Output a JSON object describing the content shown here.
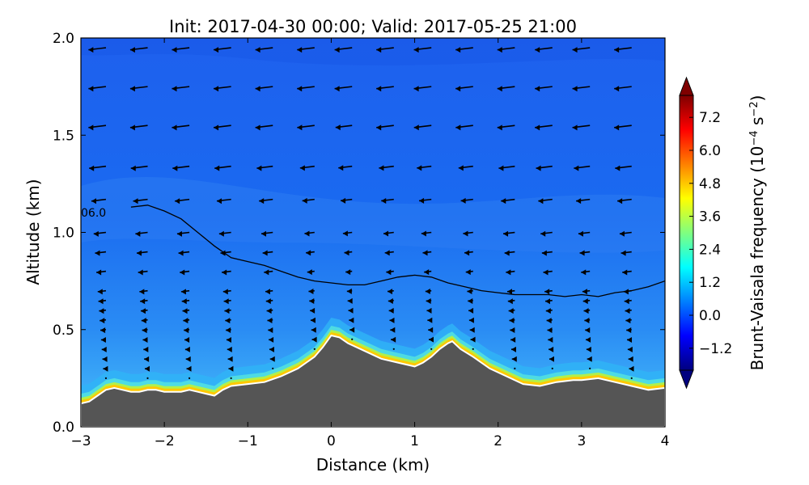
{
  "chart_data": {
    "type": "heatmap",
    "title": "Init: 2017-04-30 00:00; Valid: 2017-05-25 21:00",
    "xlabel": "Distance (km)",
    "ylabel": "Altitude (km)",
    "xlim": [
      -3,
      4
    ],
    "ylim": [
      0,
      2
    ],
    "x_ticks": [
      -3,
      -2,
      -1,
      0,
      1,
      2,
      3,
      4
    ],
    "x_tick_labels": [
      "−3",
      "−2",
      "−1",
      "0",
      "1",
      "2",
      "3",
      "4"
    ],
    "y_ticks": [
      0.0,
      0.5,
      1.0,
      1.5,
      2.0
    ],
    "y_tick_labels": [
      "0.0",
      "0.5",
      "1.0",
      "1.5",
      "2.0"
    ],
    "colorbar": {
      "label": "Brunt-Vaisala frequency (10",
      "label_exponent": "−4",
      "label_unit": " s",
      "label_unit_exponent": "−2",
      "label_close": ")",
      "range": [
        -2.0,
        8.0
      ],
      "ticks": [
        -1.2,
        0.0,
        1.2,
        2.4,
        3.6,
        4.8,
        6.0,
        7.2
      ],
      "tick_labels": [
        "−1.2",
        "0.0",
        "1.2",
        "2.4",
        "3.6",
        "4.8",
        "6.0",
        "7.2"
      ],
      "colormap": "jet",
      "extend": "both"
    },
    "contour": {
      "label": "06.0",
      "points": [
        [
          -2.4,
          1.13
        ],
        [
          -2.2,
          1.14
        ],
        [
          -2.0,
          1.11
        ],
        [
          -1.8,
          1.07
        ],
        [
          -1.6,
          1.0
        ],
        [
          -1.4,
          0.93
        ],
        [
          -1.2,
          0.87
        ],
        [
          -1.0,
          0.85
        ],
        [
          -0.8,
          0.83
        ],
        [
          -0.6,
          0.8
        ],
        [
          -0.4,
          0.77
        ],
        [
          -0.2,
          0.75
        ],
        [
          0.0,
          0.74
        ],
        [
          0.2,
          0.73
        ],
        [
          0.4,
          0.73
        ],
        [
          0.6,
          0.75
        ],
        [
          0.8,
          0.77
        ],
        [
          1.0,
          0.78
        ],
        [
          1.2,
          0.77
        ],
        [
          1.4,
          0.74
        ],
        [
          1.6,
          0.72
        ],
        [
          1.8,
          0.7
        ],
        [
          2.0,
          0.69
        ],
        [
          2.2,
          0.68
        ],
        [
          2.6,
          0.68
        ],
        [
          2.8,
          0.67
        ],
        [
          3.0,
          0.68
        ],
        [
          3.2,
          0.67
        ],
        [
          3.4,
          0.69
        ],
        [
          3.6,
          0.7
        ],
        [
          3.8,
          0.72
        ],
        [
          4.0,
          0.75
        ]
      ]
    },
    "terrain": {
      "color": "#555555",
      "points": [
        [
          -3.0,
          0.12
        ],
        [
          -2.9,
          0.13
        ],
        [
          -2.8,
          0.16
        ],
        [
          -2.7,
          0.19
        ],
        [
          -2.6,
          0.2
        ],
        [
          -2.5,
          0.19
        ],
        [
          -2.4,
          0.18
        ],
        [
          -2.3,
          0.18
        ],
        [
          -2.2,
          0.19
        ],
        [
          -2.1,
          0.19
        ],
        [
          -2.0,
          0.18
        ],
        [
          -1.9,
          0.18
        ],
        [
          -1.8,
          0.18
        ],
        [
          -1.7,
          0.19
        ],
        [
          -1.6,
          0.18
        ],
        [
          -1.5,
          0.17
        ],
        [
          -1.4,
          0.16
        ],
        [
          -1.3,
          0.19
        ],
        [
          -1.2,
          0.21
        ],
        [
          -1.0,
          0.22
        ],
        [
          -0.8,
          0.23
        ],
        [
          -0.6,
          0.26
        ],
        [
          -0.4,
          0.3
        ],
        [
          -0.2,
          0.36
        ],
        [
          -0.1,
          0.41
        ],
        [
          0.0,
          0.47
        ],
        [
          0.1,
          0.46
        ],
        [
          0.2,
          0.43
        ],
        [
          0.4,
          0.39
        ],
        [
          0.6,
          0.35
        ],
        [
          0.8,
          0.33
        ],
        [
          1.0,
          0.31
        ],
        [
          1.1,
          0.33
        ],
        [
          1.2,
          0.36
        ],
        [
          1.3,
          0.4
        ],
        [
          1.4,
          0.43
        ],
        [
          1.45,
          0.44
        ],
        [
          1.55,
          0.4
        ],
        [
          1.7,
          0.36
        ],
        [
          1.9,
          0.3
        ],
        [
          2.1,
          0.26
        ],
        [
          2.3,
          0.22
        ],
        [
          2.5,
          0.21
        ],
        [
          2.7,
          0.23
        ],
        [
          2.9,
          0.24
        ],
        [
          3.0,
          0.24
        ],
        [
          3.2,
          0.25
        ],
        [
          3.4,
          0.23
        ],
        [
          3.6,
          0.21
        ],
        [
          3.8,
          0.19
        ],
        [
          4.0,
          0.2
        ]
      ]
    },
    "wind": {
      "x": [
        -2.7,
        -2.2,
        -1.7,
        -1.2,
        -0.7,
        -0.2,
        0.25,
        0.75,
        1.2,
        1.7,
        2.2,
        2.65,
        3.1,
        3.6
      ],
      "levels": [
        0.2,
        0.25,
        0.3,
        0.35,
        0.4,
        0.45,
        0.5,
        0.55,
        0.6,
        0.65,
        0.7,
        0.8,
        0.9,
        1.0,
        1.17,
        1.34,
        1.55,
        1.75,
        1.95
      ],
      "u_at_top": -1.2
    }
  }
}
